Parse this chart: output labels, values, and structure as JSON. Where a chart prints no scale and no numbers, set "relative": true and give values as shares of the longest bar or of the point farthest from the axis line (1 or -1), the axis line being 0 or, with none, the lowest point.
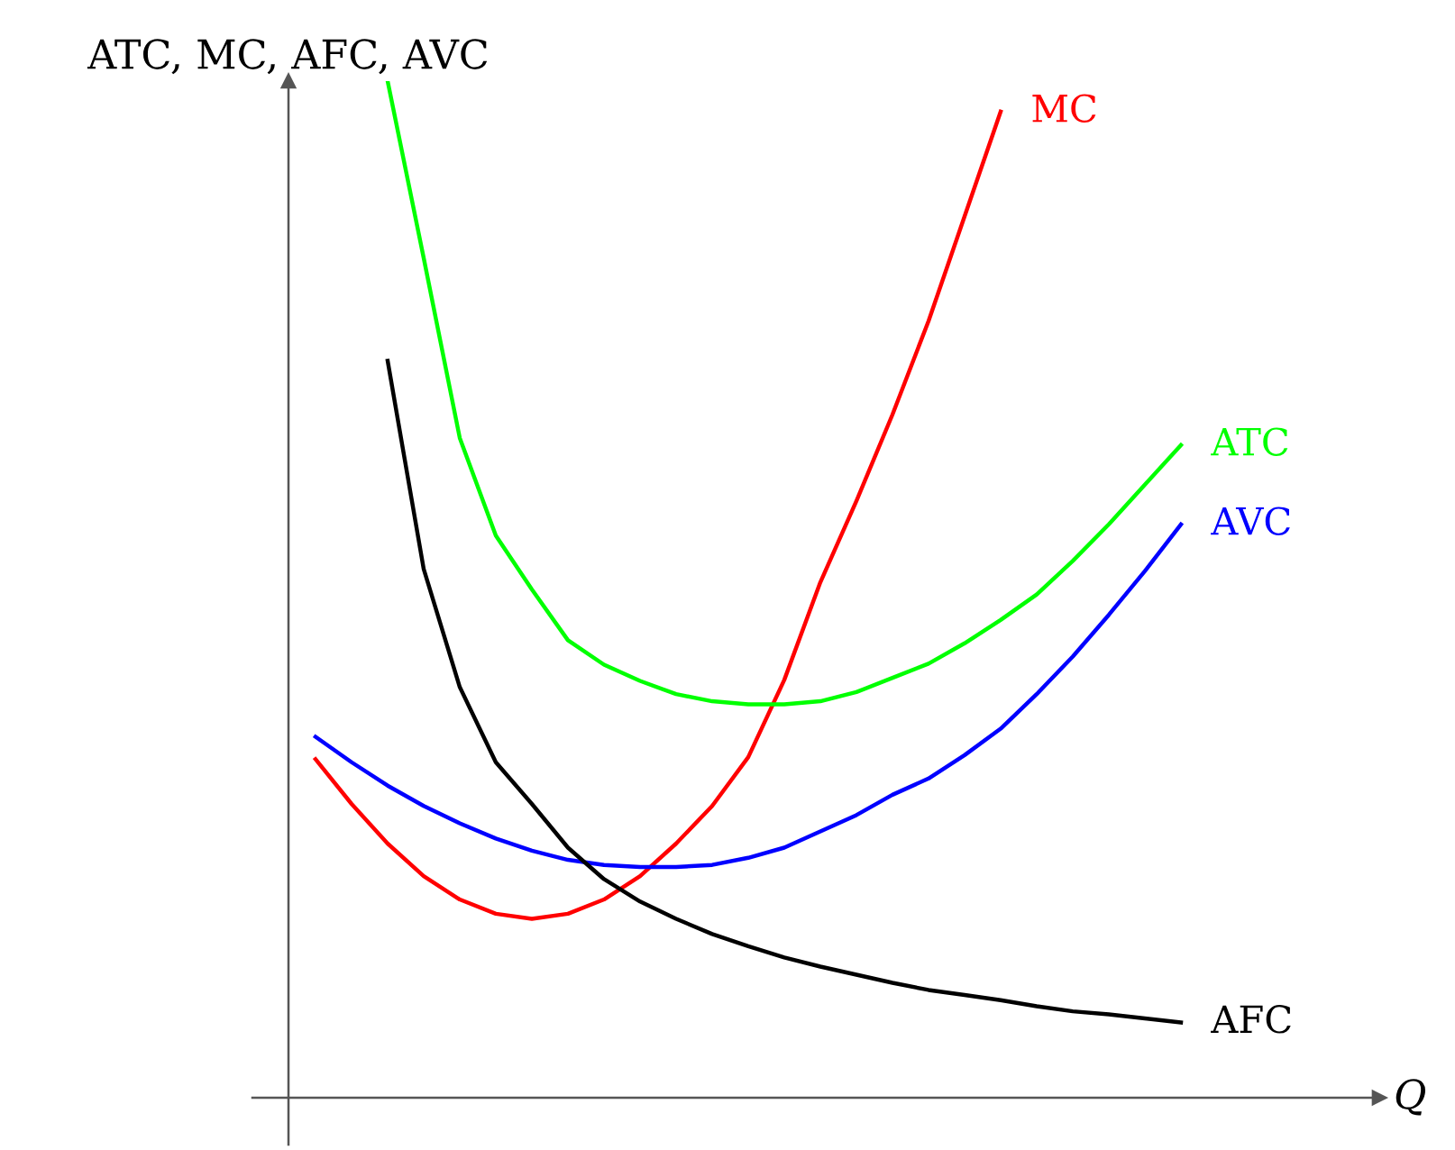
{
  "chart_data": {
    "type": "line",
    "relative": true,
    "ylabel": "ATC, MC, AFC, AVC",
    "xlabel": "Q",
    "legend": false,
    "grid": false,
    "marker": "none",
    "line_style": "solid",
    "categories": [
      null,
      null,
      null,
      null,
      null,
      null,
      null,
      null,
      null,
      null,
      null,
      null,
      null,
      null,
      null,
      null,
      null,
      null,
      null,
      null,
      null,
      null,
      null,
      null,
      null
    ],
    "series": [
      {
        "name": "MC",
        "color": "#ff0000",
        "values": [
          0.333,
          0.289,
          0.25,
          0.218,
          0.195,
          0.181,
          0.176,
          0.181,
          0.195,
          0.218,
          0.25,
          0.287,
          0.335,
          0.411,
          0.507,
          0.587,
          0.672,
          0.764,
          0.867,
          0.97,
          null,
          null,
          null,
          null,
          null
        ]
      },
      {
        "name": "ATC",
        "color": "#00ff00",
        "values": [
          null,
          null,
          1.0,
          0.826,
          0.649,
          0.553,
          0.5,
          0.45,
          0.426,
          0.41,
          0.397,
          0.39,
          0.387,
          0.387,
          0.39,
          0.399,
          0.413,
          0.427,
          0.447,
          0.47,
          0.495,
          0.528,
          0.564,
          0.603,
          0.642
        ]
      },
      {
        "name": "AVC",
        "color": "#0000ff",
        "values": [
          0.355,
          0.33,
          0.307,
          0.287,
          0.27,
          0.255,
          0.243,
          0.234,
          0.229,
          0.227,
          0.227,
          0.229,
          0.236,
          0.246,
          0.262,
          0.278,
          0.298,
          0.314,
          0.337,
          0.363,
          0.397,
          0.434,
          0.475,
          0.518,
          0.564
        ]
      },
      {
        "name": "AFC",
        "color": "#000000",
        "values": [
          null,
          null,
          0.725,
          0.52,
          0.404,
          0.33,
          0.289,
          0.246,
          0.215,
          0.193,
          0.176,
          0.161,
          0.149,
          0.138,
          0.129,
          0.121,
          0.113,
          0.106,
          0.101,
          0.096,
          0.09,
          0.085,
          0.082,
          0.078,
          0.074
        ]
      }
    ]
  }
}
